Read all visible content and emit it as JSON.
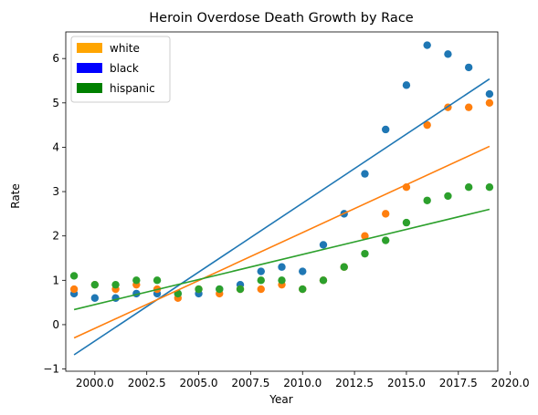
{
  "chart_data": {
    "type": "scatter",
    "title": "Heroin Overdose Death Growth by Race",
    "xlabel": "Year",
    "ylabel": "Rate",
    "xlim": [
      1998.6,
      2019.4
    ],
    "ylim": [
      -1.05,
      6.6
    ],
    "x_ticks": [
      2000.0,
      2002.5,
      2005.0,
      2007.5,
      2010.0,
      2012.5,
      2015.0,
      2017.5,
      2020.0
    ],
    "x_tick_labels": [
      "2000.0",
      "2002.5",
      "2005.0",
      "2007.5",
      "2010.0",
      "2012.5",
      "2015.0",
      "2017.5",
      "2020.0"
    ],
    "y_ticks": [
      -1,
      0,
      1,
      2,
      3,
      4,
      5,
      6
    ],
    "y_tick_labels": [
      "−1",
      "0",
      "1",
      "2",
      "3",
      "4",
      "5",
      "6"
    ],
    "grid": false,
    "legend_position": "top-left",
    "legend": [
      {
        "label": "white",
        "color": "#ffa500"
      },
      {
        "label": "black",
        "color": "#0000ff"
      },
      {
        "label": "hispanic",
        "color": "#008000"
      }
    ],
    "x": [
      1999,
      2000,
      2001,
      2002,
      2003,
      2004,
      2005,
      2006,
      2007,
      2008,
      2009,
      2010,
      2011,
      2012,
      2013,
      2014,
      2015,
      2016,
      2017,
      2018,
      2019
    ],
    "series": [
      {
        "color": "#1f77b4",
        "values": [
          0.7,
          0.6,
          0.6,
          0.7,
          0.7,
          0.7,
          0.7,
          0.8,
          0.9,
          1.2,
          1.3,
          1.2,
          1.8,
          2.5,
          3.4,
          4.4,
          5.4,
          6.3,
          6.1,
          5.8,
          5.2
        ],
        "fit": {
          "start": [
            1999,
            -0.68
          ],
          "end": [
            2019,
            5.54
          ]
        }
      },
      {
        "color": "#ff7f0e",
        "values": [
          0.8,
          0.9,
          0.8,
          0.9,
          0.8,
          0.6,
          0.8,
          0.7,
          0.8,
          0.8,
          0.9,
          0.8,
          1.0,
          1.3,
          2.0,
          2.5,
          3.1,
          4.5,
          4.9,
          4.9,
          5.0
        ],
        "fit": {
          "start": [
            1999,
            -0.3
          ],
          "end": [
            2019,
            4.02
          ]
        }
      },
      {
        "color": "#2ca02c",
        "values": [
          1.1,
          0.9,
          0.9,
          1.0,
          1.0,
          0.7,
          0.8,
          0.8,
          0.8,
          1.0,
          1.0,
          0.8,
          1.0,
          1.3,
          1.6,
          1.9,
          2.3,
          2.8,
          2.9,
          3.1,
          3.1
        ],
        "fit": {
          "start": [
            1999,
            0.34
          ],
          "end": [
            2019,
            2.6
          ]
        }
      }
    ]
  }
}
